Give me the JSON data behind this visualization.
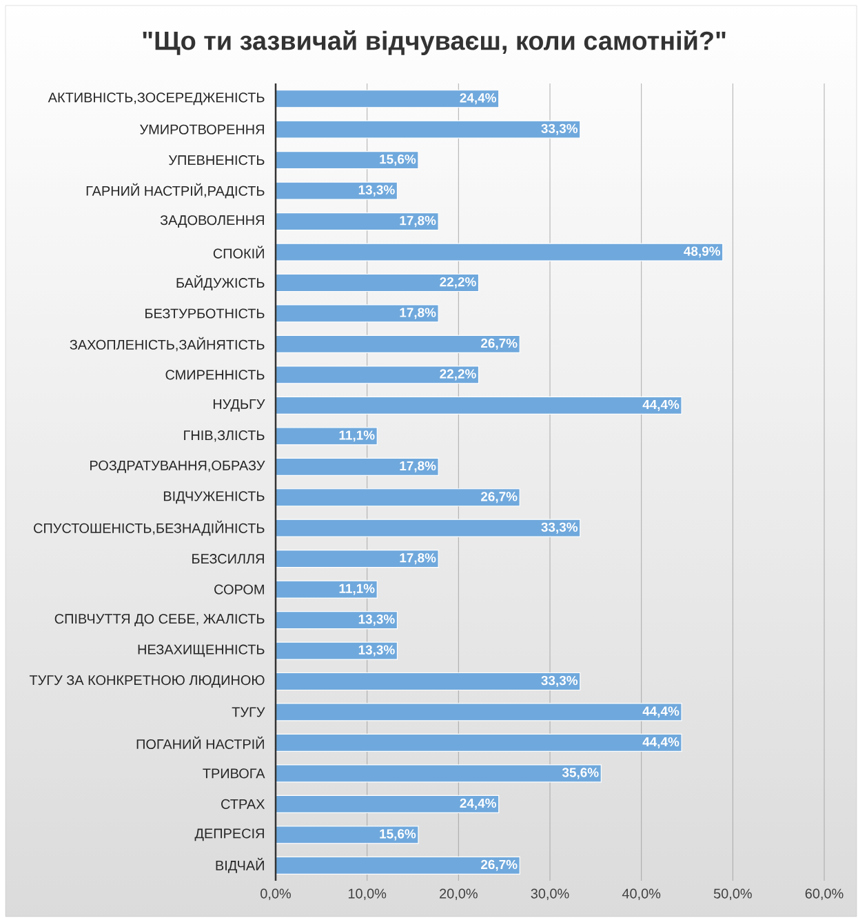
{
  "chart_data": {
    "type": "bar",
    "orientation": "horizontal",
    "title": "\"Що ти зазвичай відчуваєш, коли самотній?\"",
    "categories": [
      "АКТИВНІСТЬ,ЗОСЕРЕДЖЕНІСТЬ",
      "УМИРОТВОРЕННЯ",
      "УПЕВНЕНІСТЬ",
      "ГАРНИЙ НАСТРІЙ,РАДІСТЬ",
      "ЗАДОВОЛЕННЯ",
      "СПОКІЙ",
      "БАЙДУЖІСТЬ",
      "БЕЗТУРБОТНІСТЬ",
      "ЗАХОПЛЕНІСТЬ,ЗАЙНЯТІСТЬ",
      "СМИРЕННІСТЬ",
      "НУДЬГУ",
      "ГНІВ,ЗЛІСТЬ",
      "РОЗДРАТУВАННЯ,ОБРАЗУ",
      "ВІДЧУЖЕНІСТЬ",
      "СПУСТОШЕНІСТЬ,БЕЗНАДІЙНІСТЬ",
      "БЕЗСИЛЛЯ",
      "СОРОМ",
      "СПІВЧУТТЯ ДО СЕБЕ, ЖАЛІСТЬ",
      "НЕЗАХИЩЕННІСТЬ",
      "ТУГУ ЗА КОНКРЕТНОЮ ЛЮДИНОЮ",
      "ТУГУ",
      "ПОГАНИЙ НАСТРІЙ",
      "ТРИВОГА",
      "СТРАХ",
      "ДЕПРЕСІЯ",
      "ВІДЧАЙ"
    ],
    "values": [
      24.4,
      33.3,
      15.6,
      13.3,
      17.8,
      48.9,
      22.2,
      17.8,
      26.7,
      22.2,
      44.4,
      11.1,
      17.8,
      26.7,
      33.3,
      17.8,
      11.1,
      13.3,
      13.3,
      33.3,
      44.4,
      44.4,
      35.6,
      24.4,
      15.6,
      26.7
    ],
    "value_labels": [
      "24,4%",
      "33,3%",
      "15,6%",
      "13,3%",
      "17,8%",
      "48,9%",
      "22,2%",
      "17,8%",
      "26,7%",
      "22,2%",
      "44,4%",
      "11,1%",
      "17,8%",
      "26,7%",
      "33,3%",
      "17,8%",
      "11,1%",
      "13,3%",
      "13,3%",
      "33,3%",
      "44,4%",
      "44,4%",
      "35,6%",
      "24,4%",
      "15,6%",
      "26,7%"
    ],
    "color": "#6fa8dc",
    "xlim": [
      0,
      60
    ],
    "xticks": [
      {
        "value": 0,
        "label": "0,0%"
      },
      {
        "value": 10,
        "label": "10,0%"
      },
      {
        "value": 20,
        "label": "20,0%"
      },
      {
        "value": 30,
        "label": "30,0%"
      },
      {
        "value": 40,
        "label": "40,0%"
      },
      {
        "value": 50,
        "label": "50,0%"
      },
      {
        "value": 60,
        "label": "60,0%"
      }
    ],
    "grid": "x"
  }
}
